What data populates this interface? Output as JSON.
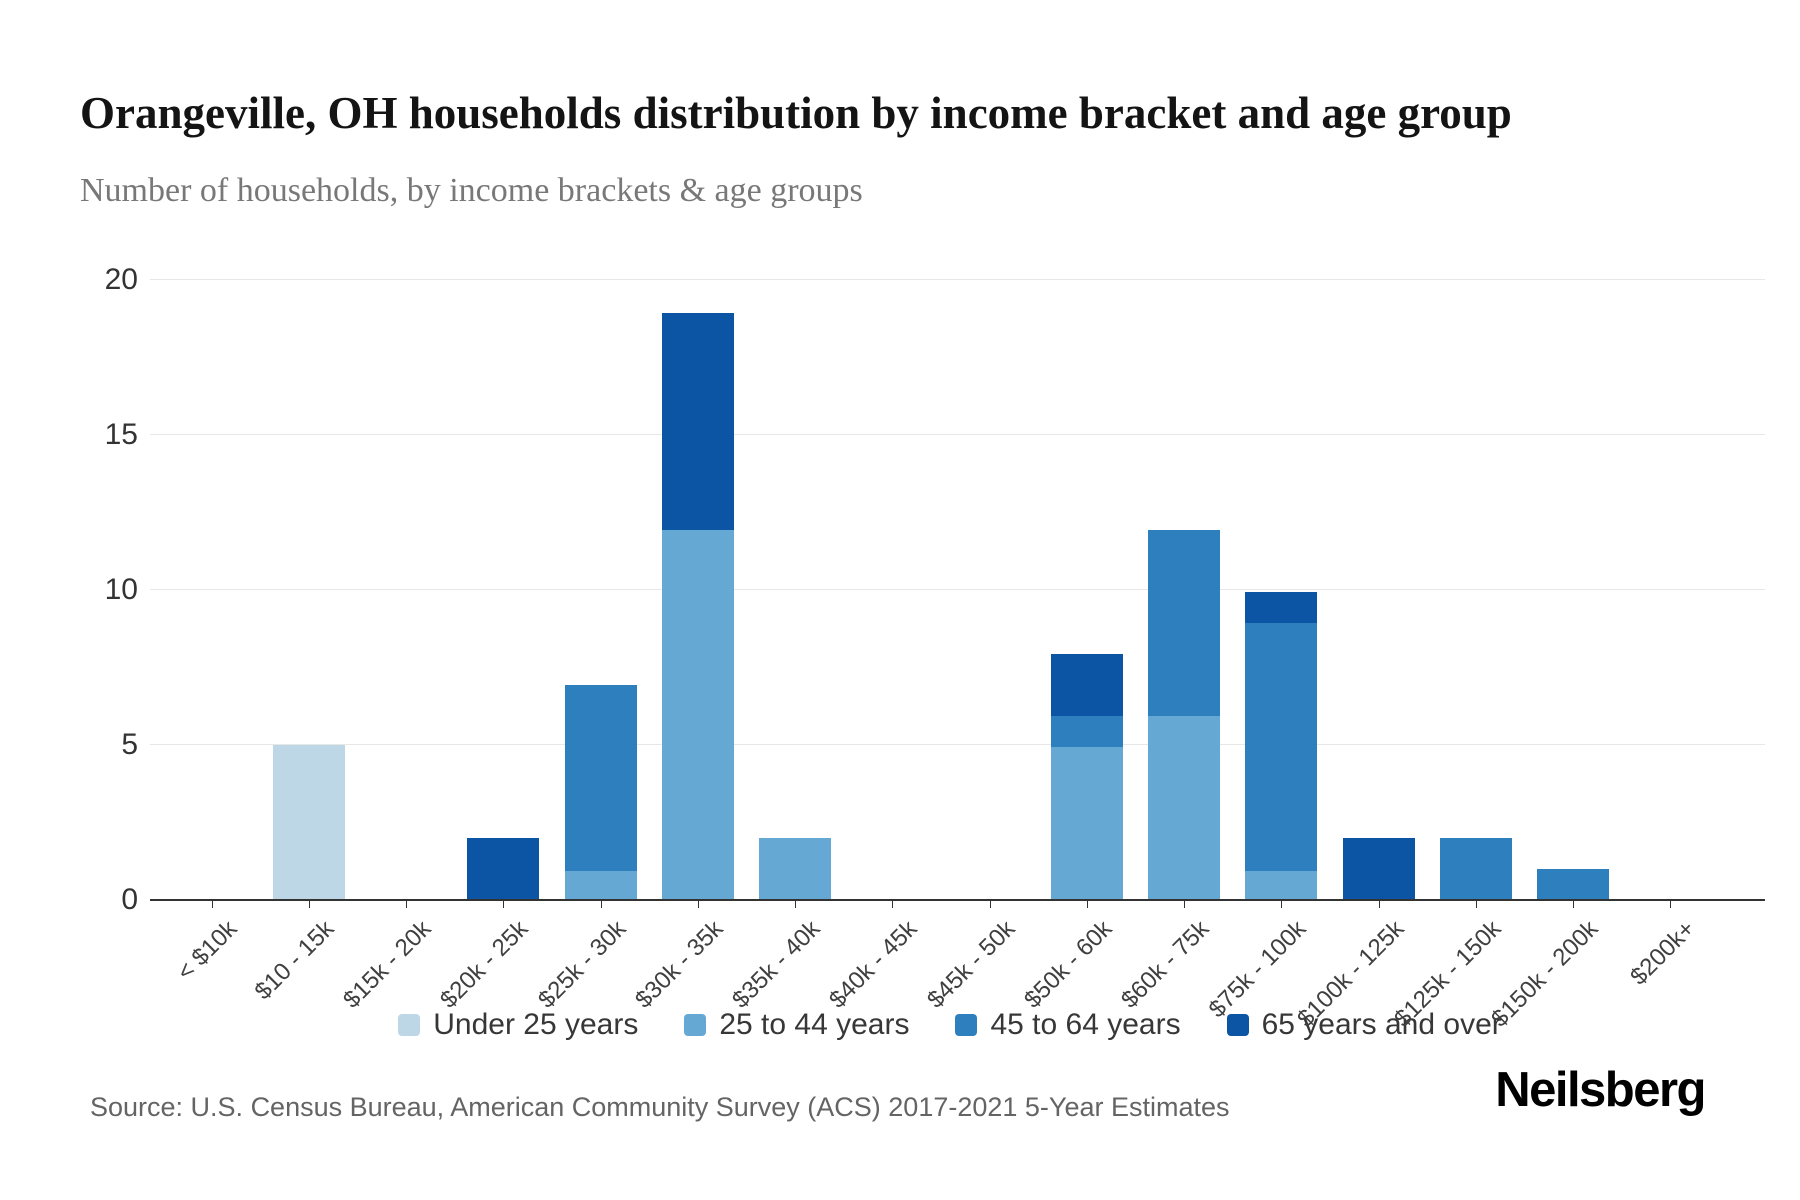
{
  "page": {
    "source": "Source: U.S. Census Bureau, American Community Survey (ACS) 2017-2021 5-Year Estimates",
    "brand": "Neilsberg"
  },
  "chart_data": {
    "type": "bar",
    "stacked": true,
    "title": "Orangeville, OH households distribution by income bracket and age group",
    "subtitle": "Number of households, by income brackets & age groups",
    "categories": [
      "< $10k",
      "$10 - 15k",
      "$15k - 20k",
      "$20k - 25k",
      "$25k - 30k",
      "$30k - 35k",
      "$35k - 40k",
      "$40k - 45k",
      "$45k - 50k",
      "$50k - 60k",
      "$60k - 75k",
      "$75k - 100k",
      "$100k - 125k",
      "$125k - 150k",
      "$150k - 200k",
      "$200k+"
    ],
    "series": [
      {
        "name": "Under 25 years",
        "color": "#bdd7e7",
        "values": [
          0,
          5,
          0,
          0,
          0,
          0,
          0,
          0,
          0,
          0,
          0,
          0,
          0,
          0,
          0,
          0
        ]
      },
      {
        "name": "25 to 44 years",
        "color": "#66a8d4",
        "values": [
          0,
          0,
          0,
          0,
          1,
          12,
          2,
          0,
          0,
          5,
          6,
          1,
          0,
          0,
          0,
          0
        ]
      },
      {
        "name": "45 to 64 years",
        "color": "#2e7fbe",
        "values": [
          0,
          0,
          0,
          0,
          6,
          0,
          0,
          0,
          0,
          1,
          6,
          8,
          0,
          2,
          1,
          0
        ]
      },
      {
        "name": "65 years and over",
        "color": "#0b55a4",
        "values": [
          0,
          0,
          0,
          2,
          0,
          7,
          0,
          0,
          0,
          2,
          0,
          1,
          2,
          0,
          0,
          0
        ]
      }
    ],
    "ylabel": "",
    "xlabel": "",
    "ylim": [
      0,
      20
    ],
    "yticks": [
      0,
      5,
      10,
      15,
      20
    ],
    "grid": true,
    "legend_position": "bottom"
  }
}
